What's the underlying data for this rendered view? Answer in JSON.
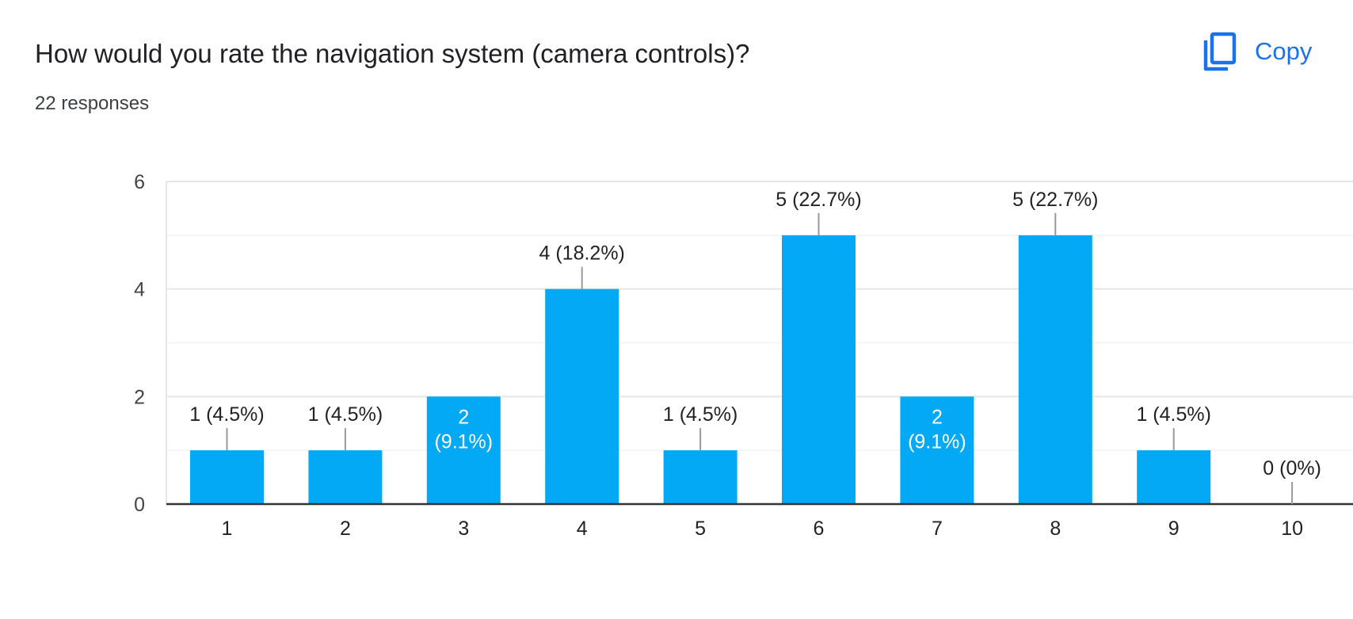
{
  "header": {
    "question": "How would you rate the navigation system (camera controls)?",
    "responses": "22 responses",
    "copy_label": "Copy",
    "copy_icon": "copy-icon",
    "accent_color": "#1a73e8"
  },
  "chart_data": {
    "type": "bar",
    "categories": [
      "1",
      "2",
      "3",
      "4",
      "5",
      "6",
      "7",
      "8",
      "9",
      "10"
    ],
    "values": [
      1,
      1,
      2,
      4,
      1,
      5,
      2,
      5,
      1,
      0
    ],
    "data_labels": [
      "1 (4.5%)",
      "1 (4.5%)",
      "2 (9.1%)",
      "4 (18.2%)",
      "1 (4.5%)",
      "5 (22.7%)",
      "2 (9.1%)",
      "5 (22.7%)",
      "1 (4.5%)",
      "0 (0%)"
    ],
    "ylim": [
      0,
      6
    ],
    "yticks": [
      0,
      2,
      4,
      6
    ],
    "grid": true,
    "bar_color": "#03a9f4",
    "title": "",
    "xlabel": "",
    "ylabel": ""
  }
}
